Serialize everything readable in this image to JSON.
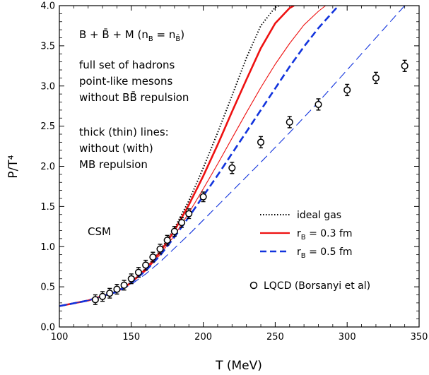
{
  "chart_data": {
    "type": "line",
    "xlabel": "T (MeV)",
    "ylabel": "P/T⁴",
    "xlim": [
      100,
      350
    ],
    "ylim": [
      0,
      4
    ],
    "xticks": [
      "100",
      "150",
      "200",
      "250",
      "300",
      "350"
    ],
    "yticks": [
      "0.0",
      "0.5",
      "1.0",
      "1.5",
      "2.0",
      "2.5",
      "3.0",
      "3.5",
      "4.0"
    ],
    "grid": false,
    "legend_position": "bottom-right",
    "annotations": {
      "system_main": "B + B̄ + M (n",
      "system_sub1": "B",
      "system_eq": " = n",
      "system_sub2": "B̄",
      "system_close": ")",
      "line1": "full set of hadrons",
      "line2": "point-like mesons",
      "line3": "without BB̄ repulsion",
      "line4": "thick (thin) lines:",
      "line5": "without (with)",
      "line6": "MB repulsion",
      "model": "CSM"
    },
    "legend": [
      {
        "label": "ideal gas"
      },
      {
        "label_main": "r",
        "label_sub": "B",
        "label_rest": " = 0.3 fm"
      },
      {
        "label_main": "r",
        "label_sub": "B",
        "label_rest": " = 0.5 fm"
      },
      {
        "label": "LQCD (Borsanyi et al)"
      }
    ],
    "colors": {
      "ideal": "#000000",
      "r03": "#ee1111",
      "r05": "#1133dd",
      "lqcd": "#000000"
    },
    "series": [
      {
        "id": "ideal",
        "style": "dotted",
        "color": "#000000",
        "width": 2,
        "x": [
          100,
          120,
          140,
          150,
          160,
          170,
          180,
          190,
          200,
          210,
          220,
          230,
          240,
          250,
          253
        ],
        "y": [
          0.26,
          0.33,
          0.44,
          0.56,
          0.73,
          0.95,
          1.23,
          1.57,
          1.98,
          2.42,
          2.88,
          3.35,
          3.75,
          3.98,
          4.0
        ]
      },
      {
        "id": "r03-thick",
        "style": "solid",
        "color": "#ee1111",
        "width": 2.6,
        "x": [
          100,
          120,
          140,
          150,
          160,
          170,
          180,
          190,
          200,
          210,
          220,
          230,
          240,
          250,
          260,
          263
        ],
        "y": [
          0.26,
          0.33,
          0.44,
          0.55,
          0.72,
          0.93,
          1.2,
          1.52,
          1.88,
          2.27,
          2.68,
          3.08,
          3.47,
          3.78,
          3.97,
          4.0
        ]
      },
      {
        "id": "r03-thin",
        "style": "solid",
        "color": "#ee1111",
        "width": 1.1,
        "x": [
          100,
          120,
          140,
          150,
          160,
          170,
          180,
          190,
          200,
          210,
          220,
          230,
          240,
          250,
          260,
          270,
          280,
          285
        ],
        "y": [
          0.26,
          0.33,
          0.44,
          0.55,
          0.7,
          0.9,
          1.14,
          1.42,
          1.72,
          2.03,
          2.35,
          2.67,
          2.98,
          3.27,
          3.53,
          3.76,
          3.93,
          4.0
        ]
      },
      {
        "id": "r05-thick",
        "style": "dashed",
        "color": "#1133dd",
        "width": 2.6,
        "x": [
          100,
          120,
          140,
          150,
          160,
          170,
          180,
          190,
          200,
          210,
          220,
          230,
          240,
          250,
          260,
          270,
          280,
          290,
          294
        ],
        "y": [
          0.26,
          0.33,
          0.44,
          0.55,
          0.7,
          0.89,
          1.12,
          1.37,
          1.63,
          1.89,
          2.16,
          2.43,
          2.7,
          2.97,
          3.24,
          3.49,
          3.72,
          3.92,
          4.0
        ]
      },
      {
        "id": "r05-thin",
        "style": "dashed",
        "color": "#1133dd",
        "width": 1.1,
        "x": [
          100,
          120,
          140,
          150,
          160,
          170,
          180,
          190,
          200,
          220,
          240,
          260,
          280,
          300,
          320,
          340
        ],
        "y": [
          0.26,
          0.33,
          0.43,
          0.53,
          0.66,
          0.81,
          0.98,
          1.15,
          1.33,
          1.69,
          2.05,
          2.42,
          2.8,
          3.2,
          3.6,
          4.0
        ]
      }
    ],
    "lqcd": {
      "x": [
        125,
        130,
        135,
        140,
        145,
        150,
        155,
        160,
        165,
        170,
        175,
        180,
        185,
        190,
        200,
        220,
        240,
        260,
        280,
        300,
        320,
        340
      ],
      "y": [
        0.34,
        0.38,
        0.42,
        0.47,
        0.52,
        0.6,
        0.68,
        0.77,
        0.87,
        0.97,
        1.08,
        1.19,
        1.3,
        1.41,
        1.62,
        1.98,
        2.3,
        2.55,
        2.77,
        2.95,
        3.1,
        3.25
      ],
      "err": [
        0.06,
        0.06,
        0.06,
        0.06,
        0.06,
        0.06,
        0.06,
        0.06,
        0.06,
        0.06,
        0.06,
        0.06,
        0.06,
        0.06,
        0.06,
        0.07,
        0.07,
        0.07,
        0.07,
        0.07,
        0.07,
        0.07
      ]
    }
  }
}
